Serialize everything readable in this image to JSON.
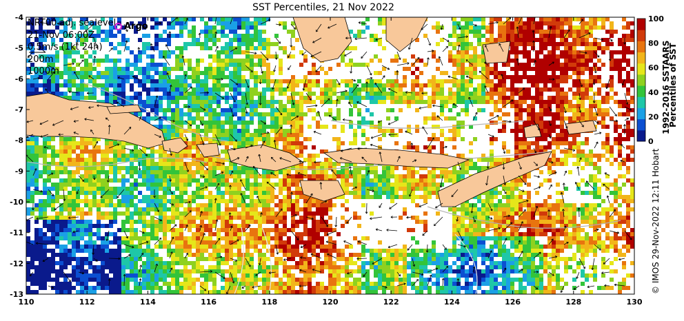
{
  "title": "SST Percentiles, 21 Nov 2022",
  "legend": {
    "line1": "NRT00 adj. sealevel",
    "line2": "21-Nov 06:00Z",
    "line3": "0.5m/s (1kt 24h)",
    "line4": "200m",
    "line5": "1000m"
  },
  "argo_label": "Argo",
  "x_ticks": [
    "110",
    "112",
    "114",
    "116",
    "118",
    "120",
    "122",
    "124",
    "126",
    "128",
    "130"
  ],
  "y_ticks": [
    "-4",
    "-5",
    "-6",
    "-7",
    "-8",
    "-9",
    "-10",
    "-11",
    "-12",
    "-13"
  ],
  "colorbar": {
    "ticks": [
      "100",
      "80",
      "60",
      "40",
      "20",
      "0"
    ],
    "title_line1": "1992-2016 SSTAARS",
    "title_line2": "Percentiles of SST",
    "colors": [
      "#0a1a8c",
      "#0b4fd1",
      "#1aa0e6",
      "#1ec7a8",
      "#33c43a",
      "#8fd11f",
      "#e6e61a",
      "#f2b51a",
      "#e8740f",
      "#d13a0a",
      "#b00000"
    ]
  },
  "credit": "© IMOS 29-Nov-2022 12:11 Hobart",
  "colors": {
    "land": "#f8c89a",
    "ocean": "#ffffff",
    "contour_200": "#b4b4b4",
    "contour_1000": "#e6e6e6",
    "argo": "#d21ecf"
  }
}
